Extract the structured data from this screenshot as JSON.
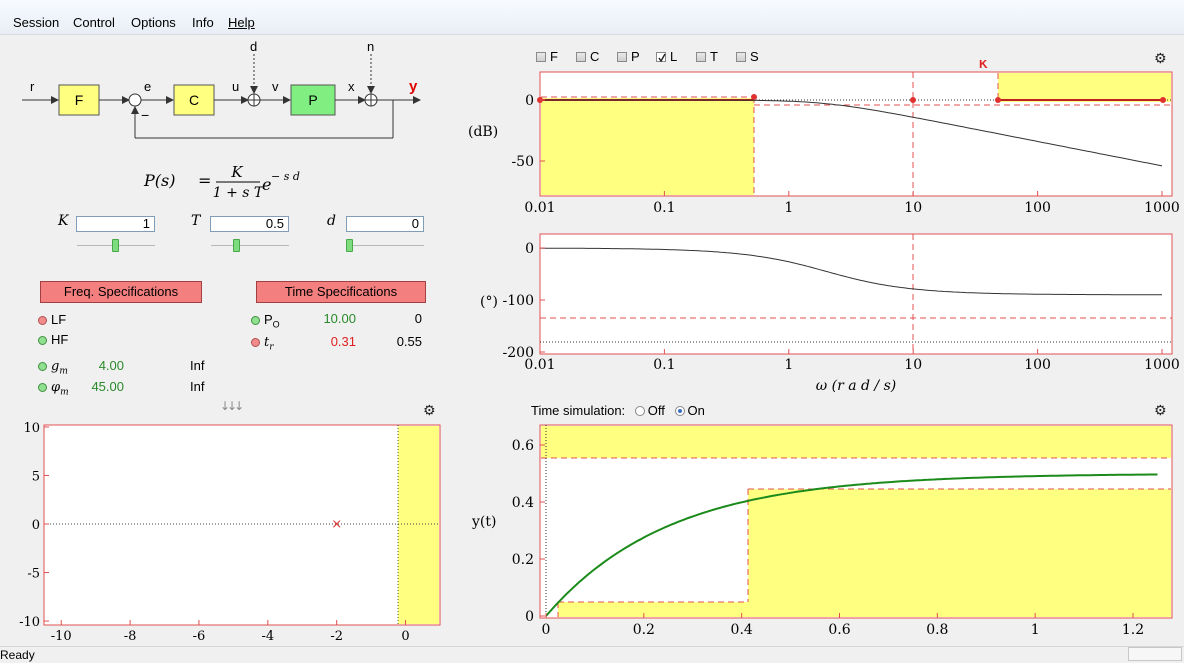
{
  "menu": [
    "Session",
    "Control",
    "Options",
    "Info",
    "Help"
  ],
  "status": {
    "text": "Ready"
  },
  "diagram": {
    "signals": {
      "r": "r",
      "e": "e",
      "u": "u",
      "v": "v",
      "x": "x",
      "y": "y",
      "d": "d",
      "n": "n",
      "minus": "−"
    },
    "blocks": {
      "F": "F",
      "C": "C",
      "P": "P"
    },
    "formula": {
      "lhs": "P(s)",
      "eq": "=",
      "num": "K",
      "den": "1 + s T",
      "exp_base": "e",
      "exp": "− s d"
    }
  },
  "params": [
    {
      "label": "K",
      "value": "1",
      "slider": 0.5
    },
    {
      "label": "T",
      "value": "0.5",
      "slider": 0.33
    },
    {
      "label": "d",
      "value": "0",
      "slider": 0.0
    }
  ],
  "freq_specs": {
    "button": "Freq. Specifications",
    "items": [
      {
        "name": "LF",
        "status": "red",
        "value": "",
        "limit": ""
      },
      {
        "name": "HF",
        "status": "green",
        "value": "",
        "limit": ""
      },
      {
        "name": "g",
        "sub": "m",
        "status": "green",
        "value": "4.00",
        "limit": "Inf"
      },
      {
        "name": "φ",
        "sub": "m",
        "status": "green",
        "value": "45.00",
        "limit": "Inf"
      }
    ]
  },
  "time_specs": {
    "button": "Time Specifications",
    "items": [
      {
        "name": "P",
        "sub": "O",
        "status": "green",
        "value": "10.00",
        "actual": "0",
        "value_color": "#2a8a2a"
      },
      {
        "name": "t",
        "sub": "r",
        "status": "red",
        "value": "0.31",
        "actual": "0.55",
        "value_color": "#e02020"
      }
    ]
  },
  "pz_plot": {
    "yticks": [
      "10",
      "5",
      "0",
      "-5",
      "-10"
    ],
    "xticks": [
      "-10",
      "-8",
      "-6",
      "-4",
      "-2",
      "0"
    ],
    "pole": {
      "re": -2,
      "im": 0,
      "symbol": "×"
    },
    "arrows": "↓↓↓"
  },
  "bode_checks": [
    {
      "label": "F",
      "checked": false
    },
    {
      "label": "C",
      "checked": false
    },
    {
      "label": "P",
      "checked": false
    },
    {
      "label": "L",
      "checked": true
    },
    {
      "label": "T",
      "checked": false
    },
    {
      "label": "S",
      "checked": false
    }
  ],
  "bode_mag": {
    "ylabel": "(dB)",
    "yticks": [
      "0",
      "-50"
    ],
    "xticks": [
      "0.01",
      "0.1",
      "1",
      "10",
      "100",
      "1000"
    ],
    "marker": "K"
  },
  "bode_phase": {
    "ylabel": "(°)",
    "yticks": [
      "0",
      "-100",
      "-200"
    ],
    "xticks": [
      "0.01",
      "0.1",
      "1",
      "10",
      "100",
      "1000"
    ],
    "xlabel": "ω (r a d / s)"
  },
  "time_plot": {
    "title": "Time simulation:",
    "options": [
      {
        "label": "Off",
        "selected": false
      },
      {
        "label": "On",
        "selected": true
      }
    ],
    "ylabel": "y(t)",
    "yticks": [
      "0.6",
      "0.4",
      "0.2",
      "0"
    ],
    "xticks": [
      "0",
      "0.2",
      "0.4",
      "0.6",
      "0.8",
      "1",
      "1.2"
    ]
  }
}
